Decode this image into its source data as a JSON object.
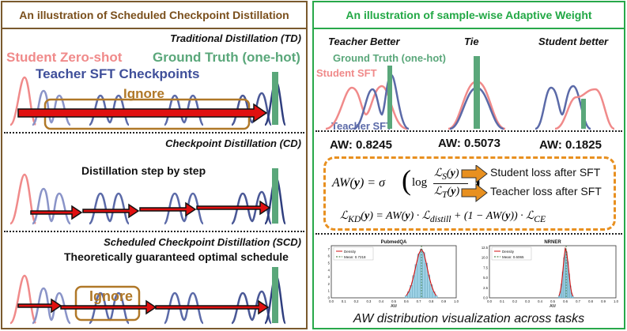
{
  "left": {
    "header": "An illustration of Scheduled Checkpoint Distillation",
    "td": {
      "title": "Traditional Distillation (TD)",
      "student_label": "Student Zero-shot",
      "gt_label": "Ground Truth (one-hot)",
      "teacher_label": "Teacher SFT Checkpoints",
      "ignore_label": "Ignore"
    },
    "cd": {
      "title": "Checkpoint Distillation (CD)",
      "subtitle": "Distillation step by step"
    },
    "scd": {
      "title": "Scheduled Checkpoint Distillation (SCD)",
      "subtitle": "Theoretically guaranteed optimal schedule",
      "ignore_label": "Ignore"
    }
  },
  "right": {
    "header": "An illustration of sample-wise Adaptive Weight",
    "cases": [
      "Teacher Better",
      "Tie",
      "Student better"
    ],
    "gt_label": "Ground Truth (one-hot)",
    "student_label": "Student SFT",
    "teacher_label": "Teacher SFT",
    "aw_values": [
      "AW: 0.8245",
      "AW: 0.5073",
      "AW: 0.1825"
    ],
    "formula": {
      "student_loss": "Student loss after SFT",
      "teacher_loss": "Teacher loss after SFT"
    },
    "hist": [
      {
        "title": "PubmedQA",
        "legend": [
          "Density",
          "Mean: 0.7218"
        ],
        "xlabel": "AW",
        "yticks": [
          "0",
          "1",
          "2",
          "3",
          "4",
          "5",
          "6",
          "7"
        ],
        "xticks": [
          "0.0",
          "0.1",
          "0.2",
          "0.3",
          "0.4",
          "0.5",
          "0.6",
          "0.7",
          "0.8",
          "0.9",
          "1.0"
        ]
      },
      {
        "title": "NRNER",
        "legend": [
          "Density",
          "Mean: 0.6065"
        ],
        "xlabel": "AW",
        "yticks": [
          "0.0",
          "2.5",
          "5.0",
          "7.5",
          "10.0",
          "12.5"
        ],
        "xticks": [
          "0.0",
          "0.1",
          "0.2",
          "0.3",
          "0.4",
          "0.5",
          "0.6",
          "0.7",
          "0.8",
          "0.9",
          "1.0"
        ]
      }
    ],
    "footer": "AW distribution visualization across tasks"
  },
  "colors": {
    "student": "#f08a8a",
    "teacher": "#5b6aa8",
    "ground_truth": "#5aa77a",
    "arrow": "#e01010",
    "ignore": "#b07828",
    "formula_border": "#e89020",
    "hist_bar": "#9fd3e6"
  },
  "chart_data": [
    {
      "type": "bar",
      "title": "PubmedQA",
      "xlabel": "AW",
      "ylabel": "",
      "xlim": [
        0,
        1
      ],
      "ylim": [
        0,
        7.5
      ],
      "mean": 0.7218,
      "x": [
        0.6,
        0.62,
        0.64,
        0.66,
        0.68,
        0.7,
        0.72,
        0.74,
        0.76,
        0.78,
        0.8,
        0.82,
        0.84
      ],
      "values": [
        0.3,
        0.9,
        1.8,
        3.2,
        4.8,
        6.3,
        7.0,
        6.5,
        5.0,
        3.3,
        1.9,
        0.9,
        0.3
      ]
    },
    {
      "type": "bar",
      "title": "NRNER",
      "xlabel": "AW",
      "ylabel": "",
      "xlim": [
        0,
        1
      ],
      "ylim": [
        0,
        13
      ],
      "mean": 0.6065,
      "x": [
        0.55,
        0.56,
        0.57,
        0.58,
        0.59,
        0.6,
        0.61,
        0.62,
        0.63,
        0.64,
        0.65,
        0.66
      ],
      "values": [
        0.5,
        1.5,
        3.5,
        6.5,
        10.0,
        12.3,
        11.5,
        9.0,
        6.0,
        3.0,
        1.2,
        0.4
      ]
    }
  ]
}
